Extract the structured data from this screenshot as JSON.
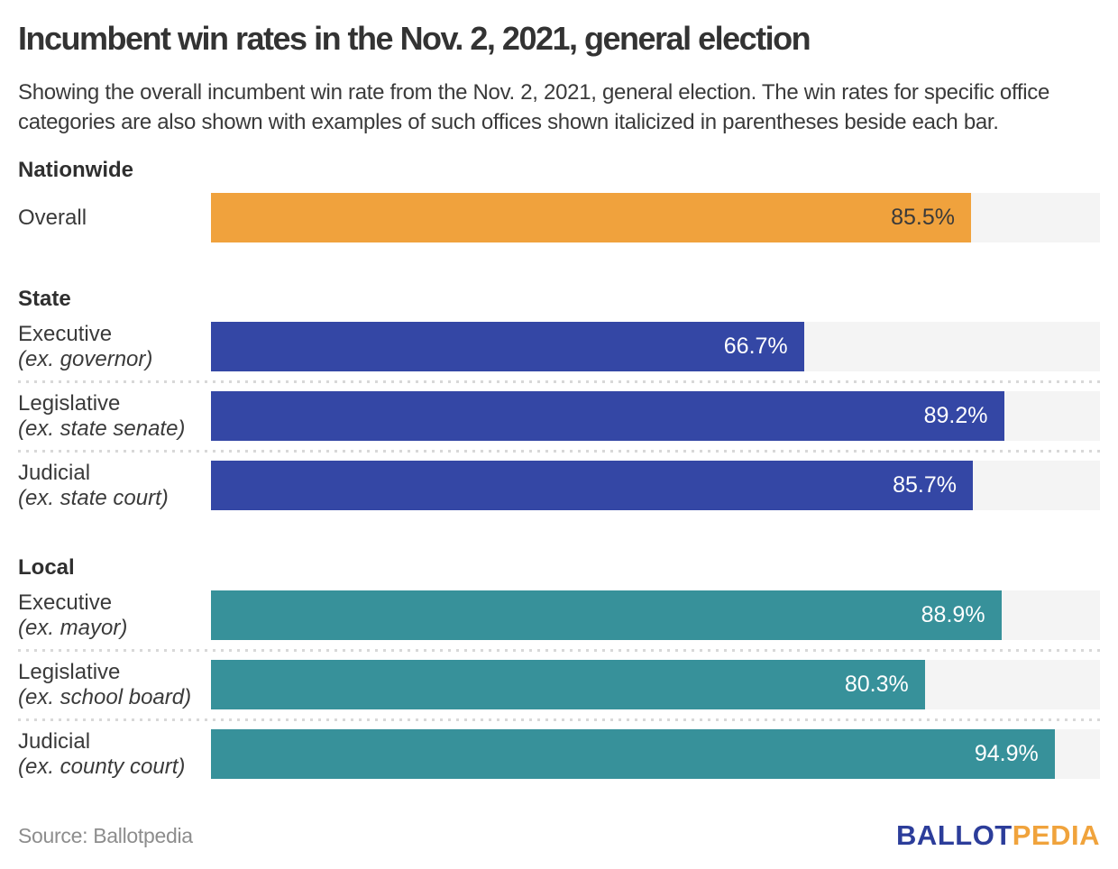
{
  "chart_data": {
    "type": "bar",
    "orientation": "horizontal",
    "title": "Incumbent win rates in the Nov. 2, 2021, general election",
    "subtitle": "Showing the overall incumbent win rate from the Nov. 2, 2021, general election. The win rates for specific office categories are also shown with examples of such offices shown italicized in parentheses beside each bar.",
    "unit": "%",
    "xlim": [
      0,
      100
    ],
    "grid": false,
    "legend": "none",
    "sections": [
      {
        "name": "Nationwide",
        "color": "#f0a23d",
        "value_color": "#3a3a3a",
        "rows": [
          {
            "label": "Overall",
            "sublabel": "",
            "value": 85.5,
            "display": "85.5%"
          }
        ]
      },
      {
        "name": "State",
        "color": "#3447a5",
        "value_color": "#ffffff",
        "rows": [
          {
            "label": "Executive",
            "sublabel": "(ex. governor)",
            "value": 66.7,
            "display": "66.7%"
          },
          {
            "label": "Legislative",
            "sublabel": "(ex. state senate)",
            "value": 89.2,
            "display": "89.2%"
          },
          {
            "label": "Judicial",
            "sublabel": "(ex. state court)",
            "value": 85.7,
            "display": "85.7%"
          }
        ]
      },
      {
        "name": "Local",
        "color": "#37919a",
        "value_color": "#ffffff",
        "rows": [
          {
            "label": "Executive",
            "sublabel": "(ex. mayor)",
            "value": 88.9,
            "display": "88.9%"
          },
          {
            "label": "Legislative",
            "sublabel": "(ex. school board)",
            "value": 80.3,
            "display": "80.3%"
          },
          {
            "label": "Judicial",
            "sublabel": "(ex. county court)",
            "value": 94.9,
            "display": "94.9%"
          }
        ]
      }
    ],
    "track_color": "#f4f4f4"
  },
  "footer": {
    "source": "Source: Ballotpedia",
    "logo": {
      "part1": "BALLOT",
      "part2": "PEDIA",
      "color1": "#2c3d9a",
      "color2": "#f0a33c"
    }
  }
}
